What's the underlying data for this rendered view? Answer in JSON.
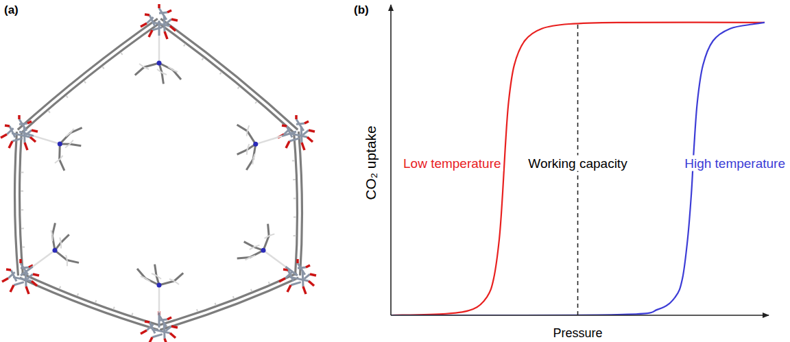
{
  "panel_labels": [
    "(a)",
    "(b)"
  ],
  "chart_data": {
    "type": "line",
    "xlabel": "Pressure",
    "ylabel": "CO₂ uptake",
    "xlim": [
      0,
      1
    ],
    "ylim": [
      0,
      1
    ],
    "tick_labels": false,
    "grid": false,
    "series": [
      {
        "name": "Low temperature",
        "color": "#e8201f",
        "x": [
          0,
          0.147,
          0.22,
          0.257,
          0.275,
          0.29,
          0.299,
          0.306,
          0.315,
          0.33,
          0.358,
          0.404,
          0.477,
          0.606,
          1
        ],
        "values": [
          0,
          0.005,
          0.02,
          0.06,
          0.12,
          0.25,
          0.4,
          0.55,
          0.7,
          0.82,
          0.9,
          0.94,
          0.955,
          0.96,
          0.96
        ]
      },
      {
        "name": "High temperature",
        "color": "#3c3cd6",
        "x": [
          0,
          0.606,
          0.716,
          0.761,
          0.78,
          0.794,
          0.804,
          0.811,
          0.82,
          0.835,
          0.862,
          0.908,
          0.972,
          1
        ],
        "values": [
          0,
          0.002,
          0.02,
          0.06,
          0.12,
          0.25,
          0.4,
          0.55,
          0.7,
          0.82,
          0.9,
          0.94,
          0.955,
          0.96
        ]
      }
    ],
    "reference_line": {
      "x": 0.5,
      "label": "Working capacity",
      "line_style": "dashed"
    }
  }
}
